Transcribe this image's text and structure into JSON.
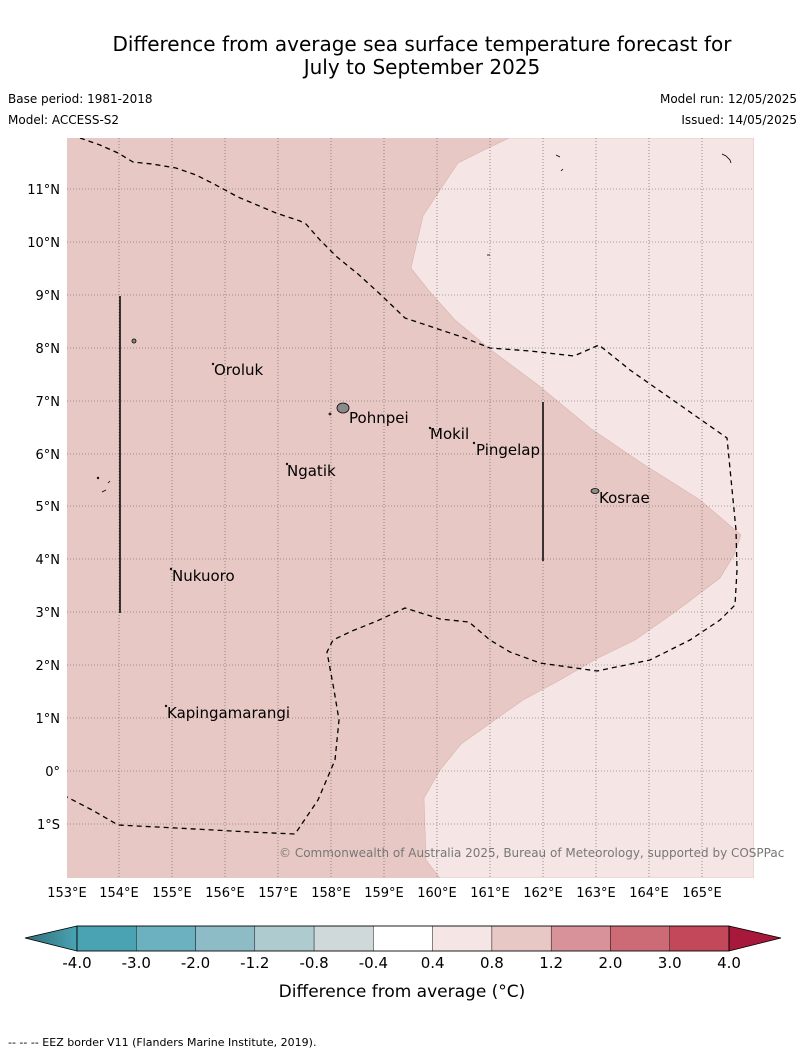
{
  "title": {
    "line1": "Difference from average sea surface temperature forecast for",
    "line2": "July to September 2025"
  },
  "meta": {
    "base_period": "Base period: 1981-2018",
    "model": "Model: ACCESS-S2",
    "model_run": "Model run: 12/05/2025",
    "issued": "Issued: 14/05/2025"
  },
  "map": {
    "lon_ticks": [
      "153°E",
      "154°E",
      "155°E",
      "156°E",
      "157°E",
      "158°E",
      "159°E",
      "160°E",
      "161°E",
      "162°E",
      "163°E",
      "164°E",
      "165°E"
    ],
    "lat_ticks": [
      "11°N",
      "10°N",
      "9°N",
      "8°N",
      "7°N",
      "6°N",
      "5°N",
      "4°N",
      "3°N",
      "2°N",
      "1°N",
      "0°",
      "1°S"
    ],
    "places": [
      "Oroluk",
      "Pohnpei",
      "Mokil",
      "Pingelap",
      "Ngatik",
      "Kosrae",
      "Nukuoro",
      "Kapingamarangi"
    ],
    "copyright": "© Commonwealth of Australia 2025, Bureau of Meteorology, supported by COSPPac",
    "colors": {
      "band_0_4_to_0_8": "#f5e6e5",
      "band_0_8_to_1_2": "#e8c8c4"
    }
  },
  "colorbar": {
    "labels": [
      "-4.0",
      "-3.0",
      "-2.0",
      "-1.2",
      "-0.8",
      "-0.4",
      "0.4",
      "0.8",
      "1.2",
      "2.0",
      "3.0",
      "4.0"
    ],
    "colors": [
      "#4aa3b3",
      "#6bb1bf",
      "#8ebcc6",
      "#aecbcf",
      "#d0d9da",
      "#ffffff",
      "#f5e6e5",
      "#e8c8c4",
      "#d8939a",
      "#cc6b75",
      "#c34859"
    ],
    "low_extend_color": "#3b7f8c",
    "high_extend_color": "#a8183a",
    "label": "Difference from average (°C)"
  },
  "footer": "--  --  -- EEZ border V11 (Flanders Marine Institute, 2019)."
}
